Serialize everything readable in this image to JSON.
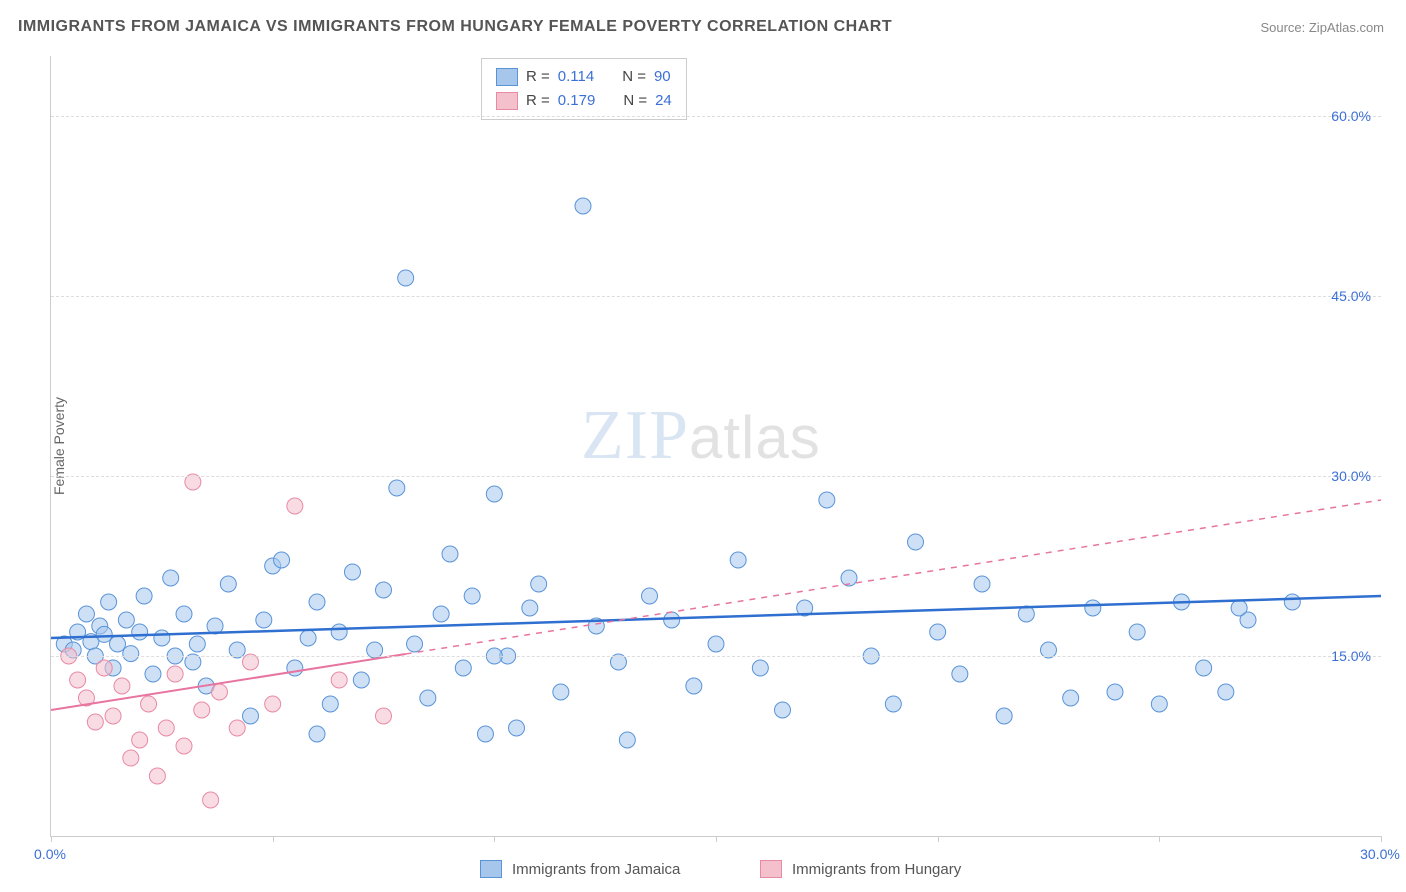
{
  "title": "IMMIGRANTS FROM JAMAICA VS IMMIGRANTS FROM HUNGARY FEMALE POVERTY CORRELATION CHART",
  "source": "Source: ZipAtlas.com",
  "ylabel": "Female Poverty",
  "watermark_bold": "ZIP",
  "watermark_light": "atlas",
  "chart": {
    "type": "scatter",
    "xlim": [
      0,
      30
    ],
    "ylim": [
      0,
      65
    ],
    "xtick_positions": [
      0,
      5,
      10,
      15,
      20,
      25,
      30
    ],
    "xtick_labels": {
      "0": "0.0%",
      "30": "30.0%"
    },
    "ytick_positions": [
      15,
      30,
      45,
      60
    ],
    "ytick_labels": {
      "15": "15.0%",
      "30": "30.0%",
      "45": "45.0%",
      "60": "60.0%"
    },
    "grid_color": "#dddddd",
    "background_color": "#ffffff",
    "point_radius": 8,
    "point_opacity": 0.55,
    "series": [
      {
        "name": "Immigrants from Jamaica",
        "color_fill": "#a6c6ec",
        "color_stroke": "#5a94d8",
        "R": "0.114",
        "N": "90",
        "trend": {
          "x1": 0,
          "y1": 16.5,
          "x2": 30,
          "y2": 20.0,
          "solid_until_x": 30,
          "color": "#2f6fd0",
          "width": 2.5
        },
        "points": [
          [
            0.3,
            16.0
          ],
          [
            0.5,
            15.5
          ],
          [
            0.6,
            17.0
          ],
          [
            0.8,
            18.5
          ],
          [
            0.9,
            16.2
          ],
          [
            1.0,
            15.0
          ],
          [
            1.1,
            17.5
          ],
          [
            1.2,
            16.8
          ],
          [
            1.3,
            19.5
          ],
          [
            1.4,
            14.0
          ],
          [
            1.5,
            16.0
          ],
          [
            1.7,
            18.0
          ],
          [
            1.8,
            15.2
          ],
          [
            2.0,
            17.0
          ],
          [
            2.1,
            20.0
          ],
          [
            2.3,
            13.5
          ],
          [
            2.5,
            16.5
          ],
          [
            2.7,
            21.5
          ],
          [
            2.8,
            15.0
          ],
          [
            3.0,
            18.5
          ],
          [
            3.2,
            14.5
          ],
          [
            3.3,
            16.0
          ],
          [
            3.5,
            12.5
          ],
          [
            3.7,
            17.5
          ],
          [
            4.0,
            21.0
          ],
          [
            4.2,
            15.5
          ],
          [
            4.5,
            10.0
          ],
          [
            4.8,
            18.0
          ],
          [
            5.0,
            22.5
          ],
          [
            5.2,
            23.0
          ],
          [
            5.5,
            14.0
          ],
          [
            5.8,
            16.5
          ],
          [
            6.0,
            19.5
          ],
          [
            6.3,
            11.0
          ],
          [
            6.5,
            17.0
          ],
          [
            6.8,
            22.0
          ],
          [
            7.0,
            13.0
          ],
          [
            7.3,
            15.5
          ],
          [
            7.5,
            20.5
          ],
          [
            7.8,
            29.0
          ],
          [
            8.0,
            46.5
          ],
          [
            8.2,
            16.0
          ],
          [
            8.5,
            11.5
          ],
          [
            8.8,
            18.5
          ],
          [
            9.0,
            23.5
          ],
          [
            9.3,
            14.0
          ],
          [
            9.5,
            20.0
          ],
          [
            9.8,
            8.5
          ],
          [
            10.0,
            28.5
          ],
          [
            10.3,
            15.0
          ],
          [
            10.5,
            9.0
          ],
          [
            10.8,
            19.0
          ],
          [
            11.0,
            21.0
          ],
          [
            11.5,
            12.0
          ],
          [
            12.0,
            52.5
          ],
          [
            12.3,
            17.5
          ],
          [
            12.8,
            14.5
          ],
          [
            13.0,
            8.0
          ],
          [
            13.5,
            20.0
          ],
          [
            14.0,
            18.0
          ],
          [
            14.5,
            12.5
          ],
          [
            15.0,
            16.0
          ],
          [
            15.5,
            23.0
          ],
          [
            16.0,
            14.0
          ],
          [
            16.5,
            10.5
          ],
          [
            17.0,
            19.0
          ],
          [
            17.5,
            28.0
          ],
          [
            18.0,
            21.5
          ],
          [
            18.5,
            15.0
          ],
          [
            19.0,
            11.0
          ],
          [
            19.5,
            24.5
          ],
          [
            20.0,
            17.0
          ],
          [
            20.5,
            13.5
          ],
          [
            21.0,
            21.0
          ],
          [
            21.5,
            10.0
          ],
          [
            22.0,
            18.5
          ],
          [
            22.5,
            15.5
          ],
          [
            23.0,
            11.5
          ],
          [
            23.5,
            19.0
          ],
          [
            24.0,
            12.0
          ],
          [
            24.5,
            17.0
          ],
          [
            25.0,
            11.0
          ],
          [
            25.5,
            19.5
          ],
          [
            26.0,
            14.0
          ],
          [
            26.5,
            12.0
          ],
          [
            27.0,
            18.0
          ],
          [
            28.0,
            19.5
          ],
          [
            26.8,
            19.0
          ],
          [
            10.0,
            15.0
          ],
          [
            6.0,
            8.5
          ]
        ]
      },
      {
        "name": "Immigrants from Hungary",
        "color_fill": "#f4c0cc",
        "color_stroke": "#e88aa4",
        "R": "0.179",
        "N": "24",
        "trend": {
          "x1": 0,
          "y1": 10.5,
          "x2": 30,
          "y2": 28.0,
          "solid_until_x": 8,
          "color": "#e874a0",
          "width": 2
        },
        "points": [
          [
            0.4,
            15.0
          ],
          [
            0.6,
            13.0
          ],
          [
            0.8,
            11.5
          ],
          [
            1.0,
            9.5
          ],
          [
            1.2,
            14.0
          ],
          [
            1.4,
            10.0
          ],
          [
            1.6,
            12.5
          ],
          [
            1.8,
            6.5
          ],
          [
            2.0,
            8.0
          ],
          [
            2.2,
            11.0
          ],
          [
            2.4,
            5.0
          ],
          [
            2.6,
            9.0
          ],
          [
            2.8,
            13.5
          ],
          [
            3.0,
            7.5
          ],
          [
            3.2,
            29.5
          ],
          [
            3.4,
            10.5
          ],
          [
            3.6,
            3.0
          ],
          [
            3.8,
            12.0
          ],
          [
            4.2,
            9.0
          ],
          [
            4.5,
            14.5
          ],
          [
            5.0,
            11.0
          ],
          [
            5.5,
            27.5
          ],
          [
            6.5,
            13.0
          ],
          [
            7.5,
            10.0
          ]
        ]
      }
    ]
  },
  "legend_top": {
    "rows": [
      {
        "swatch_fill": "#a6c6ec",
        "swatch_stroke": "#5a94d8",
        "r_label": "R =",
        "r_val": "0.114",
        "n_label": "N =",
        "n_val": "90"
      },
      {
        "swatch_fill": "#f4c0cc",
        "swatch_stroke": "#e88aa4",
        "r_label": "R =",
        "r_val": "0.179",
        "n_label": "N =",
        "n_val": "24"
      }
    ]
  },
  "legend_bottom": [
    {
      "swatch_fill": "#a6c6ec",
      "swatch_stroke": "#5a94d8",
      "label": "Immigrants from Jamaica"
    },
    {
      "swatch_fill": "#f4c0cc",
      "swatch_stroke": "#e88aa4",
      "label": "Immigrants from Hungary"
    }
  ]
}
